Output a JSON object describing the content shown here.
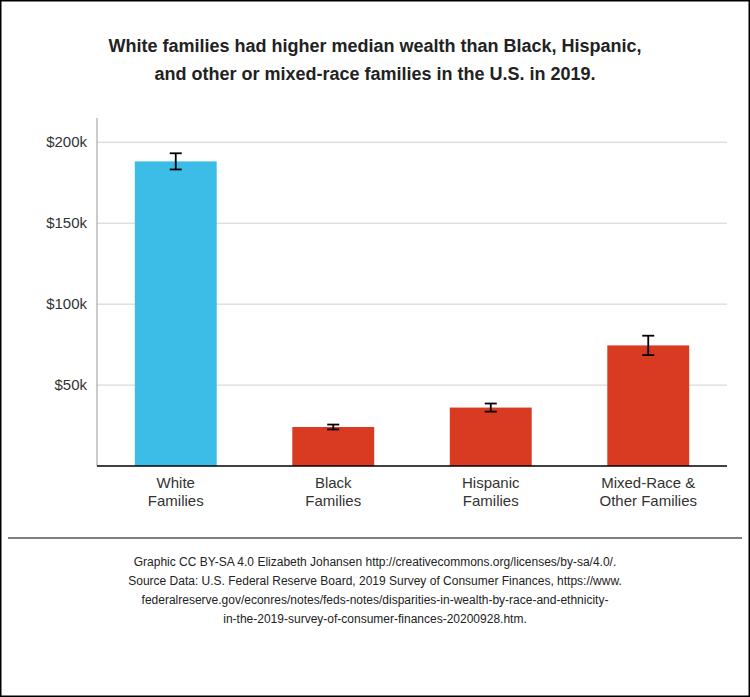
{
  "chart_data": {
    "type": "bar",
    "title": "White families had higher median wealth than Black, Hispanic,\nand other or mixed-race families in the U.S. in 2019.",
    "categories": [
      "White\nFamilies",
      "Black\nFamilies",
      "Hispanic\nFamilies",
      "Mixed-Race &\nOther Families"
    ],
    "values": [
      188200,
      24100,
      36100,
      74500
    ],
    "errors": [
      5000,
      1500,
      2500,
      6000
    ],
    "colors": [
      "#3BBDE8",
      "#D93A22",
      "#D93A22",
      "#D93A22"
    ],
    "ylim": [
      0,
      215000
    ],
    "yticks": [
      {
        "value": 50000,
        "label": "$50k"
      },
      {
        "value": 100000,
        "label": "$100k"
      },
      {
        "value": 150000,
        "label": "$150k"
      },
      {
        "value": 200000,
        "label": "$200k"
      }
    ],
    "grid": true,
    "annotations": [
      "Graphic CC BY-SA 4.0 Elizabeth Johansen http://creativecommons.org/licenses/by-sa/4.0/.\nSource Data: U.S. Federal Reserve Board, 2019 Survey of Consumer Finances, https://www.\nfederalreserve.gov/econres/notes/feds-notes/disparities-in-wealth-by-race-and-ethnicity-\nin-the-2019-survey-of-consumer-finances-20200928.htm."
    ]
  }
}
